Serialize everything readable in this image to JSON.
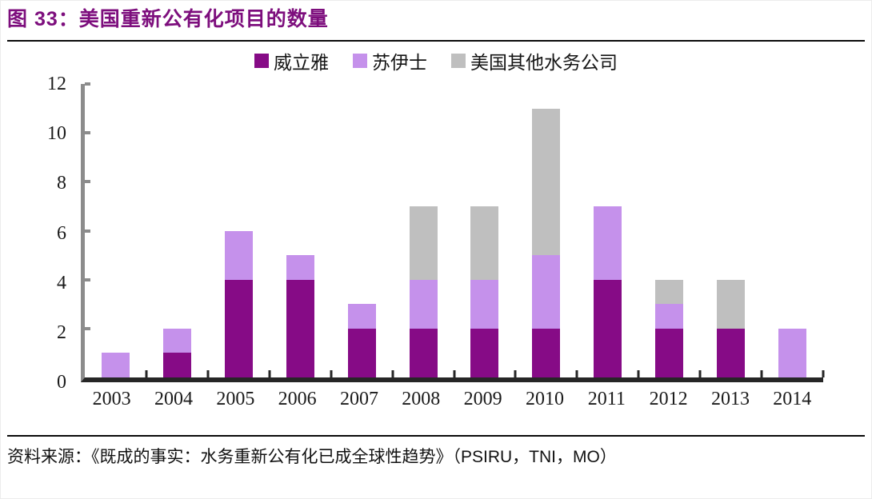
{
  "header": {
    "title": "图 33：美国重新公有化项目的数量"
  },
  "footer": {
    "source": "资料来源：《既成的事实：水务重新公有化已成全球性趋势》",
    "source_orgs": "（PSIRU，TNI，MO）"
  },
  "colors": {
    "title": "#7D0E7D",
    "veolia": "#860B86",
    "suez": "#C591EB",
    "other": "#BFBFBF",
    "y_axis": "#8C8C8C",
    "x_axis": "#262626",
    "rule": "#0A0A0A"
  },
  "chart_data": {
    "type": "bar",
    "stacked": true,
    "title": "美国重新公有化项目的数量",
    "categories": [
      "2003",
      "2004",
      "2005",
      "2006",
      "2007",
      "2008",
      "2009",
      "2010",
      "2011",
      "2012",
      "2013",
      "2014"
    ],
    "series": [
      {
        "name": "威立雅",
        "color": "#860B86",
        "values": [
          0,
          1,
          4,
          4,
          2,
          2,
          2,
          2,
          4,
          2,
          2,
          0
        ]
      },
      {
        "name": "苏伊士",
        "color": "#C591EB",
        "values": [
          1,
          1,
          2,
          1,
          1,
          2,
          2,
          3,
          3,
          1,
          0,
          2
        ]
      },
      {
        "name": "美国其他水务公司",
        "color": "#BFBFBF",
        "values": [
          0,
          0,
          0,
          0,
          0,
          3,
          3,
          6,
          0,
          1,
          2,
          0
        ]
      }
    ],
    "totals": [
      1,
      2,
      6,
      5,
      3,
      7,
      7,
      11,
      7,
      4,
      4,
      2
    ],
    "ylim": [
      0,
      12
    ],
    "yticks": [
      0,
      2,
      4,
      6,
      8,
      10,
      12
    ],
    "xlabel": "",
    "ylabel": "",
    "grid": false,
    "legend_position": "top-center"
  }
}
